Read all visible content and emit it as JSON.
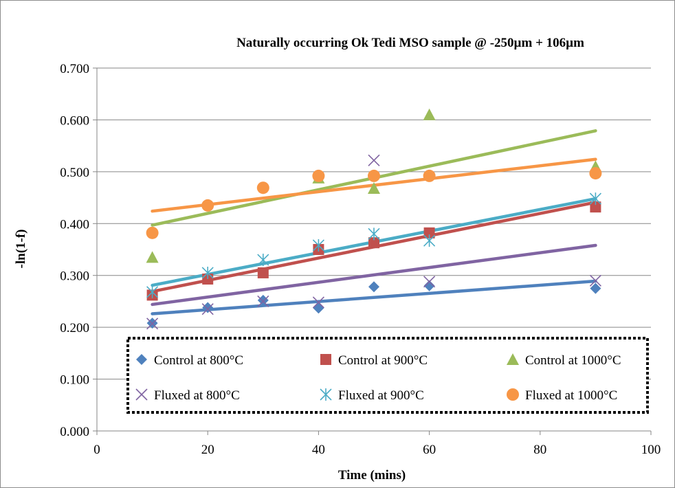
{
  "chart_data": {
    "type": "scatter",
    "title": "Naturally occurring Ok Tedi MSO sample @ -250µm + 106µm",
    "xlabel": "Time (mins)",
    "ylabel": "-ln(1-f)",
    "xlim": [
      0,
      100
    ],
    "ylim": [
      0,
      0.7
    ],
    "x_ticks": [
      "0",
      "20",
      "40",
      "60",
      "80",
      "100"
    ],
    "y_ticks": [
      "0.000",
      "0.100",
      "0.200",
      "0.300",
      "0.400",
      "0.500",
      "0.600",
      "0.700"
    ],
    "grid": true,
    "legend_position": "bottom-center",
    "series": [
      {
        "name": "Control at 800°C",
        "marker": "diamond",
        "color": "#4f81bd",
        "trend_color": "#4f81bd",
        "x": [
          10,
          20,
          30,
          40,
          50,
          60,
          90
        ],
        "y": [
          0.208,
          0.238,
          0.252,
          0.237,
          0.278,
          0.28,
          0.275
        ],
        "trendline": [
          [
            10,
            0.226
          ],
          [
            90,
            0.289
          ]
        ]
      },
      {
        "name": "Control at 900°C",
        "marker": "square",
        "color": "#c0504d",
        "trend_color": "#c0504d",
        "x": [
          10,
          20,
          30,
          40,
          50,
          60,
          90
        ],
        "y": [
          0.262,
          0.293,
          0.305,
          0.35,
          0.363,
          0.382,
          0.432
        ],
        "trendline": [
          [
            10,
            0.269
          ],
          [
            90,
            0.441
          ]
        ]
      },
      {
        "name": "Control at 1000°C",
        "marker": "triangle",
        "color": "#9bbb59",
        "trend_color": "#9bbb59",
        "x": [
          10,
          40,
          50,
          60,
          90
        ],
        "y": [
          0.335,
          0.488,
          0.468,
          0.61,
          0.51
        ],
        "trendline": [
          [
            10,
            0.397
          ],
          [
            90,
            0.579
          ]
        ]
      },
      {
        "name": "Fluxed at 800°C",
        "marker": "x",
        "color": "#8064a2",
        "trend_color": "#8064a2",
        "x": [
          10,
          20,
          30,
          40,
          50,
          60,
          90
        ],
        "y": [
          0.207,
          0.235,
          0.25,
          0.248,
          0.522,
          0.288,
          0.29
        ],
        "trendline": [
          [
            10,
            0.244
          ],
          [
            90,
            0.358
          ]
        ]
      },
      {
        "name": "Fluxed at 900°C",
        "marker": "star",
        "color": "#4bacc6",
        "trend_color": "#4bacc6",
        "x": [
          10,
          20,
          30,
          40,
          50,
          60,
          90
        ],
        "y": [
          0.268,
          0.305,
          0.33,
          0.358,
          0.38,
          0.367,
          0.448
        ],
        "trendline": [
          [
            10,
            0.281
          ],
          [
            90,
            0.448
          ]
        ]
      },
      {
        "name": "Fluxed at 1000°C",
        "marker": "circle",
        "color": "#f79646",
        "trend_color": "#f79646",
        "x": [
          10,
          20,
          30,
          40,
          50,
          60,
          90
        ],
        "y": [
          0.382,
          0.435,
          0.469,
          0.492,
          0.492,
          0.492,
          0.497
        ],
        "trendline": [
          [
            10,
            0.424
          ],
          [
            90,
            0.524
          ]
        ]
      }
    ]
  }
}
